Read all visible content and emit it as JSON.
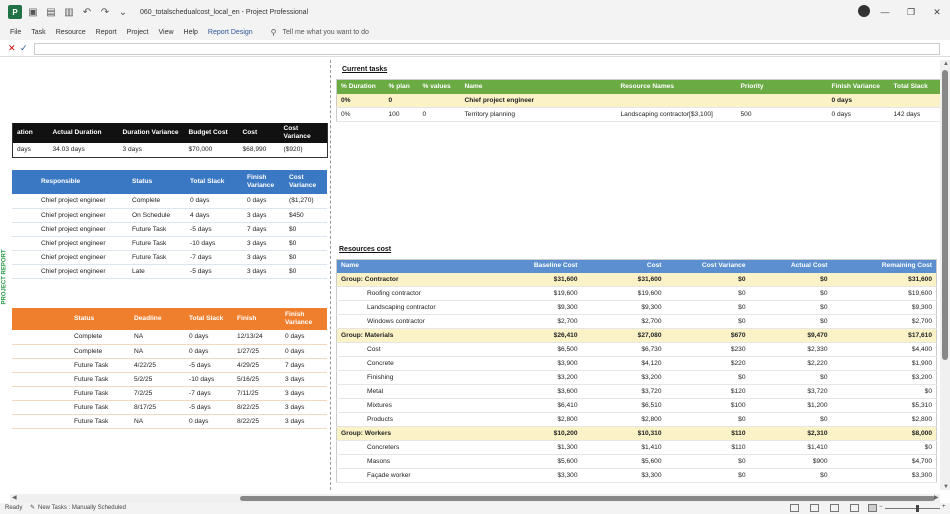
{
  "titlebar": {
    "app_icon": "project-logo-icon",
    "app_letter": "P",
    "title": "060_totalschedualcost_local_en - Project Professional",
    "qa_icons": [
      "save-icon",
      "open-icon",
      "print-icon",
      "undo-icon",
      "redo-icon",
      "customize-icon"
    ],
    "window_buttons": [
      "minimize-icon",
      "restore-icon",
      "close-icon"
    ]
  },
  "menu": {
    "items": [
      "File",
      "Task",
      "Resource",
      "Report",
      "Project",
      "View",
      "Help",
      "Report Design"
    ],
    "tell_me": "Tell me what you want to do"
  },
  "side_label": "PROJECT REPORT",
  "summary_table": {
    "headers": [
      "ation",
      "Actual Duration",
      "Duration Variance",
      "Budget Cost",
      "Cost",
      "Cost Variance"
    ],
    "rows": [
      [
        "days",
        "34.03 days",
        "3 days",
        "$70,000",
        "$68,990",
        "($920)"
      ]
    ]
  },
  "tasks_table": {
    "headers": [
      "",
      "Responsible",
      "Status",
      "Total Slack",
      "Finish Variance",
      "Cost Variance"
    ],
    "rows": [
      [
        "",
        "Chief project engineer",
        "Complete",
        "0 days",
        "0 days",
        "($1,270)"
      ],
      [
        "",
        "Chief project engineer",
        "On Schedule",
        "4 days",
        "3 days",
        "$450"
      ],
      [
        "",
        "Chief project engineer",
        "Future Task",
        "-5 days",
        "7 days",
        "$0"
      ],
      [
        "",
        "Chief project engineer",
        "Future Task",
        "-10 days",
        "3 days",
        "$0"
      ],
      [
        "",
        "Chief project engineer",
        "Future Task",
        "-7 days",
        "3 days",
        "$0"
      ],
      [
        "",
        "Chief project engineer",
        "Late",
        "-5 days",
        "3 days",
        "$0"
      ]
    ]
  },
  "milestones_table": {
    "headers": [
      "",
      "Status",
      "Deadline",
      "Total Slack",
      "Finish",
      "Finish Variance"
    ],
    "rows": [
      [
        "",
        "Complete",
        "NA",
        "0 days",
        "12/13/24",
        "0 days"
      ],
      [
        "",
        "Complete",
        "NA",
        "0 days",
        "1/27/25",
        "0 days"
      ],
      [
        "",
        "Future Task",
        "4/22/25",
        "-5 days",
        "4/29/25",
        "7 days"
      ],
      [
        "",
        "Future Task",
        "5/2/25",
        "-10 days",
        "5/16/25",
        "3 days"
      ],
      [
        "",
        "Future Task",
        "7/2/25",
        "-7 days",
        "7/11/25",
        "3 days"
      ],
      [
        "",
        "Future Task",
        "8/17/25",
        "-5 days",
        "8/22/25",
        "3 days"
      ],
      [
        "",
        "Future Task",
        "NA",
        "0 days",
        "8/22/25",
        "3 days"
      ]
    ]
  },
  "current_tasks": {
    "title": "Current tasks",
    "headers": [
      "% Duration",
      "% plan",
      "% values",
      "Name",
      "Resource Names",
      "Priority",
      "Finish Variance",
      "Total Slack"
    ],
    "rows": [
      [
        "0%",
        "0",
        "",
        "Chief project engineer",
        "",
        "",
        "0 days",
        ""
      ],
      [
        "0%",
        "100",
        "0",
        "Territory planning",
        "Landscaping contractor[$3,100]",
        "500",
        "0 days",
        "142 days"
      ]
    ]
  },
  "resources_cost": {
    "title": "Resources cost",
    "headers": [
      "Name",
      "Baseline Cost",
      "Cost",
      "Cost Variance",
      "Actual Cost",
      "Remaining Cost"
    ],
    "rows": [
      {
        "g": true,
        "c": [
          "Group: Contractor",
          "$31,600",
          "$31,600",
          "$0",
          "$0",
          "$31,600"
        ]
      },
      {
        "g": false,
        "c": [
          "Roofing contractor",
          "$19,600",
          "$19,600",
          "$0",
          "$0",
          "$19,600"
        ]
      },
      {
        "g": false,
        "c": [
          "Landscaping contractor",
          "$9,300",
          "$9,300",
          "$0",
          "$0",
          "$9,300"
        ]
      },
      {
        "g": false,
        "c": [
          "Windows contractor",
          "$2,700",
          "$2,700",
          "$0",
          "$0",
          "$2,700"
        ]
      },
      {
        "g": true,
        "c": [
          "Group: Materials",
          "$26,410",
          "$27,080",
          "$670",
          "$9,470",
          "$17,610"
        ]
      },
      {
        "g": false,
        "c": [
          "Cost",
          "$6,500",
          "$6,730",
          "$230",
          "$2,330",
          "$4,400"
        ]
      },
      {
        "g": false,
        "c": [
          "Concrete",
          "$3,900",
          "$4,120",
          "$220",
          "$2,220",
          "$1,900"
        ]
      },
      {
        "g": false,
        "c": [
          "Finishing",
          "$3,200",
          "$3,200",
          "$0",
          "$0",
          "$3,200"
        ]
      },
      {
        "g": false,
        "c": [
          "Metal",
          "$3,600",
          "$3,720",
          "$120",
          "$3,720",
          "$0"
        ]
      },
      {
        "g": false,
        "c": [
          "Mixtures",
          "$6,410",
          "$6,510",
          "$100",
          "$1,200",
          "$5,310"
        ]
      },
      {
        "g": false,
        "c": [
          "Products",
          "$2,800",
          "$2,800",
          "$0",
          "$0",
          "$2,800"
        ]
      },
      {
        "g": true,
        "c": [
          "Group: Workers",
          "$10,200",
          "$10,310",
          "$110",
          "$2,310",
          "$8,000"
        ]
      },
      {
        "g": false,
        "c": [
          "Concreters",
          "$1,300",
          "$1,410",
          "$110",
          "$1,410",
          "$0"
        ]
      },
      {
        "g": false,
        "c": [
          "Masons",
          "$5,600",
          "$5,600",
          "$0",
          "$900",
          "$4,700"
        ]
      },
      {
        "g": false,
        "c": [
          "Façade worker",
          "$3,300",
          "$3,300",
          "$0",
          "$0",
          "$3,300"
        ]
      }
    ]
  },
  "statusbar": {
    "ready": "Ready",
    "new_tasks": "New Tasks : Manually Scheduled"
  },
  "colors": {
    "summary_header": "#111111",
    "tasks_header": "#3b78c3",
    "milestones_header": "#ef7f2d",
    "current_header": "#6aab43",
    "resources_header": "#5b8fcf",
    "group_highlight": "#fbf3c7",
    "report_green": "#2e9a47"
  }
}
